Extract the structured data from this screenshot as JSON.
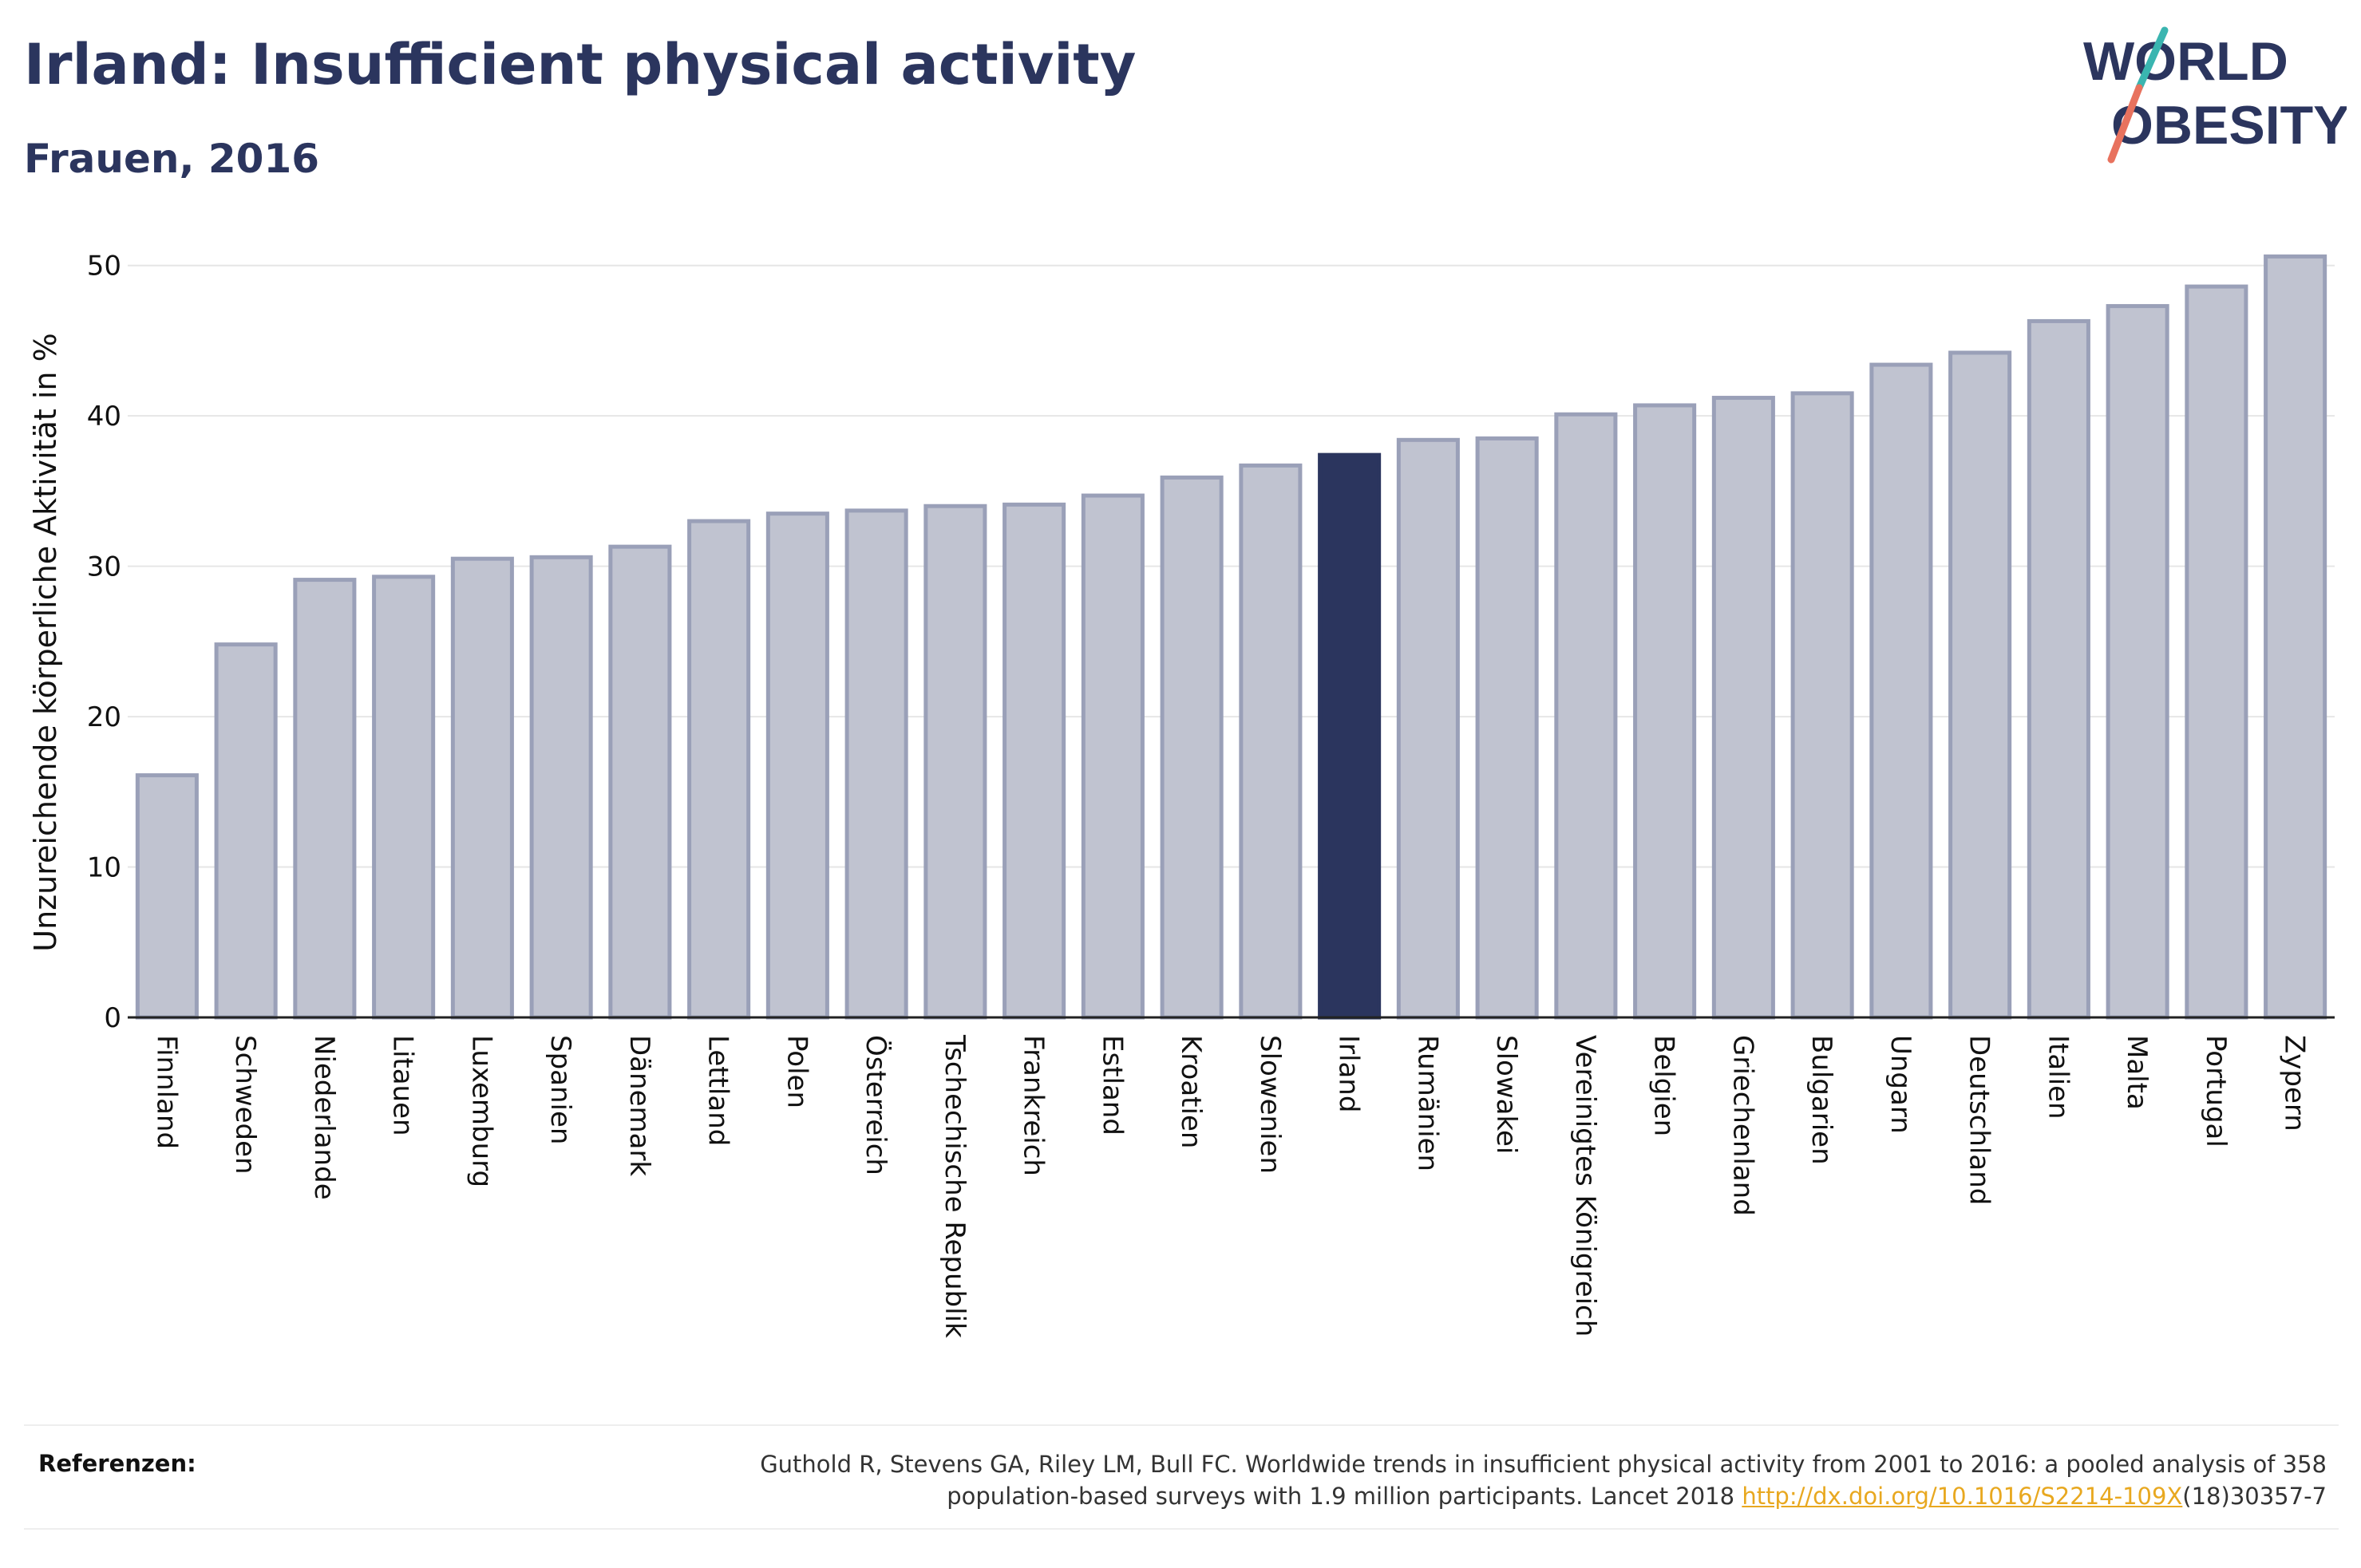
{
  "header": {
    "title": "Irland: Insufficient physical activity",
    "subtitle": "Frauen, 2016"
  },
  "logo": {
    "line1": "WORLD",
    "line2": "OBESITY"
  },
  "colors": {
    "title": "#2b355e",
    "bar": "#c0c3d0",
    "bar_stroke": "#9aa0b8",
    "highlight": "#2b355e",
    "link": "#e8a820",
    "logo_teal": "#3ab5b0",
    "logo_coral": "#e8725e"
  },
  "chart_data": {
    "type": "bar",
    "ylabel": "Unzureichende körperliche Aktivität in %",
    "ylim": [
      0,
      52
    ],
    "yticks": [
      0,
      10,
      20,
      30,
      40,
      50
    ],
    "grid": true,
    "highlight": "Irland",
    "categories": [
      "Finnland",
      "Schweden",
      "Niederlande",
      "Litauen",
      "Luxemburg",
      "Spanien",
      "Dänemark",
      "Lettland",
      "Polen",
      "Österreich",
      "Tschechische Republik",
      "Frankreich",
      "Estland",
      "Kroatien",
      "Slowenien",
      "Irland",
      "Rumänien",
      "Slowakei",
      "Vereinigtes Königreich",
      "Belgien",
      "Griechenland",
      "Bulgarien",
      "Ungarn",
      "Deutschland",
      "Italien",
      "Malta",
      "Portugal",
      "Zypern"
    ],
    "values": [
      16.1,
      24.8,
      29.1,
      29.3,
      30.5,
      30.6,
      31.3,
      33.0,
      33.5,
      33.7,
      34.0,
      34.1,
      34.7,
      35.9,
      36.7,
      37.4,
      38.4,
      38.5,
      40.1,
      40.7,
      41.2,
      41.5,
      43.4,
      44.2,
      46.3,
      47.3,
      48.6,
      50.6
    ]
  },
  "references": {
    "label": "Referenzen:",
    "text_line1": "Guthold R, Stevens GA, Riley LM, Bull FC. Worldwide trends in insufficient physical activity from 2001 to 2016: a pooled analysis of 358",
    "text_line2_prefix": "population-based surveys with 1.9 million participants. Lancet 2018 ",
    "link": "http://dx.doi.org/10.1016/S2214-109X",
    "text_line2_suffix": "(18)30357-7"
  }
}
